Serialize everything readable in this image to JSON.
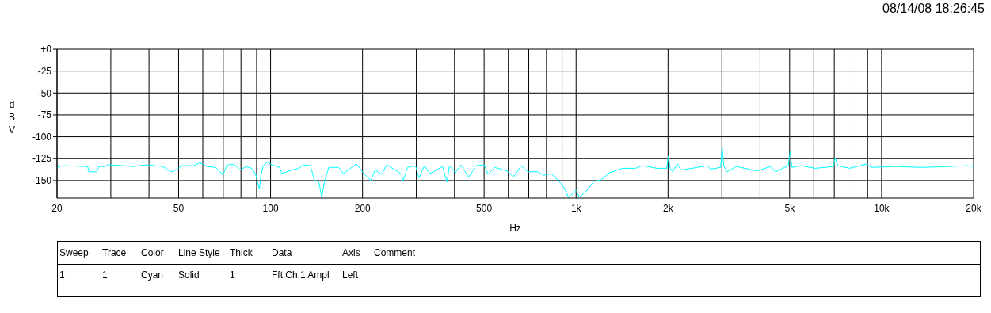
{
  "chart_data": {
    "type": "line",
    "subtitle": "08/14/08 18:26:45",
    "xlabel": "Hz",
    "ylabel": "dBV",
    "log": "x",
    "grid": true,
    "marker": "none",
    "line_style": "solid",
    "xlim": [
      20,
      20000
    ],
    "xticks": [
      20,
      {
        "value": 30,
        "label": null
      },
      {
        "value": 40,
        "label": null
      },
      50,
      {
        "value": 60,
        "label": null
      },
      {
        "value": 70,
        "label": null
      },
      {
        "value": 80,
        "label": null
      },
      {
        "value": 90,
        "label": null
      },
      100,
      200,
      {
        "value": 300,
        "label": null
      },
      {
        "value": 400,
        "label": null
      },
      500,
      {
        "value": 600,
        "label": null
      },
      {
        "value": 700,
        "label": null
      },
      {
        "value": 800,
        "label": null
      },
      {
        "value": 900,
        "label": null
      },
      {
        "value": 1000,
        "label": "1k"
      },
      {
        "value": 2000,
        "label": "2k"
      },
      {
        "value": 3000,
        "label": null
      },
      {
        "value": 4000,
        "label": null
      },
      {
        "value": 5000,
        "label": "5k"
      },
      {
        "value": 6000,
        "label": null
      },
      {
        "value": 7000,
        "label": null
      },
      {
        "value": 8000,
        "label": null
      },
      {
        "value": 9000,
        "label": null
      },
      {
        "value": 10000,
        "label": "10k"
      },
      {
        "value": 20000,
        "label": "20k"
      }
    ],
    "ylim": [
      -170,
      0
    ],
    "yticks": [
      {
        "value": 0,
        "label": "+0"
      },
      -25,
      -50,
      -75,
      -100,
      -125,
      -150
    ],
    "x": [
      20,
      20.9,
      25.2,
      25.4,
      27,
      27.4,
      28.7,
      29.3,
      33.1,
      35.6,
      39.3,
      44.3,
      47.3,
      49,
      51.2,
      56,
      58.4,
      60,
      61.9,
      66.3,
      69,
      70.4,
      71.8,
      74,
      77,
      79.3,
      83.3,
      86.6,
      89.2,
      91.9,
      92.8,
      94.6,
      97.5,
      101,
      107,
      109,
      115,
      124,
      128,
      135,
      139,
      144,
      147,
      150,
      155,
      167,
      173,
      191,
      202,
      213,
      220,
      231,
      240,
      256,
      269,
      271,
      281,
      298,
      306,
      319,
      332,
      366,
      378,
      385,
      403,
      419,
      445,
      471,
      500,
      515,
      542,
      594,
      624,
      661,
      695,
      752,
      782,
      830,
      872,
      907,
      944,
      1003,
      1023,
      1075,
      1141,
      1211,
      1286,
      1419,
      1566,
      1646,
      1837,
      1980,
      2007,
      2031,
      2071,
      2143,
      2208,
      2489,
      2694,
      2748,
      2973,
      3007,
      3043,
      3121,
      3343,
      3916,
      4324,
      4499,
      4949,
      5018,
      5089,
      5432,
      6061,
      6968,
      7040,
      7184,
      7858,
      8949,
      9219,
      11040,
      13510,
      16540,
      19100,
      20000
    ],
    "series": [
      {
        "color": "#00ffff",
        "values": [
          -135,
          -133,
          -134,
          -140,
          -140,
          -134,
          -134,
          -132,
          -133,
          -134,
          -132,
          -134,
          -140,
          -138,
          -133,
          -133,
          -130,
          -131,
          -134,
          -135,
          -142,
          -141,
          -133,
          -131,
          -133,
          -138,
          -134,
          -136,
          -142,
          -160,
          -146,
          -133,
          -129,
          -132,
          -135,
          -142,
          -139,
          -136,
          -132,
          -133,
          -149,
          -152,
          -169,
          -152,
          -135,
          -135,
          -142,
          -131,
          -142,
          -150,
          -138,
          -143,
          -132,
          -138,
          -143,
          -151,
          -135,
          -133,
          -147,
          -133,
          -142,
          -134,
          -152,
          -133,
          -141,
          -132,
          -146,
          -133,
          -132,
          -143,
          -135,
          -139,
          -146,
          -133,
          -140,
          -140,
          -144,
          -142,
          -150,
          -156,
          -169,
          -161,
          -169,
          -163,
          -151,
          -149,
          -141,
          -136,
          -136,
          -133,
          -136,
          -136,
          -122,
          -136,
          -140,
          -131,
          -138,
          -135,
          -133,
          -137,
          -135,
          -111,
          -133,
          -140,
          -134,
          -139,
          -134,
          -140,
          -133,
          -117,
          -135,
          -133,
          -136,
          -134,
          -124,
          -133,
          -136,
          -131,
          -135,
          -134,
          -135,
          -134,
          -133,
          -134
        ]
      }
    ],
    "annotations": [
      "Sweep",
      "Trace",
      "Color",
      "Line Style",
      "Thick",
      "Data",
      "Axis",
      "Comment",
      "1",
      "1",
      "Cyan",
      "Solid",
      "1",
      "Fft.Ch.1 Ampl",
      "Left"
    ]
  }
}
